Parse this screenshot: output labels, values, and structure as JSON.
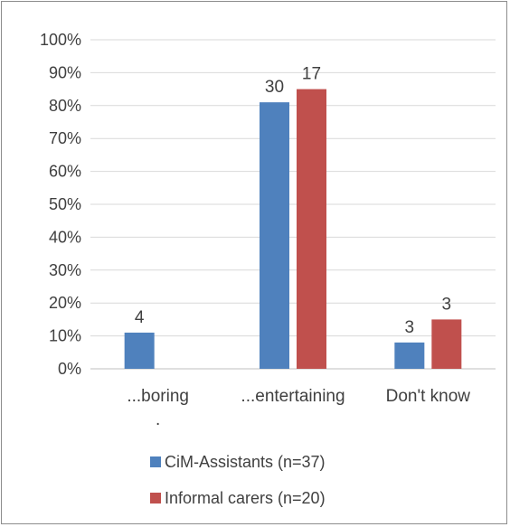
{
  "chart_data": {
    "type": "bar",
    "categories": [
      "...boring\n.",
      "...entertaining",
      "Don't know"
    ],
    "series": [
      {
        "name": "CiM-Assistants (n=37)",
        "values": [
          11,
          81,
          8
        ],
        "labels": [
          "4",
          "30",
          "3"
        ],
        "color": "#4f81bd"
      },
      {
        "name": "Informal carers (n=20)",
        "values": [
          0,
          85,
          15
        ],
        "labels": [
          "",
          "17",
          "3"
        ],
        "color": "#c0504d"
      }
    ],
    "ylim": [
      0,
      100
    ],
    "yticks": [
      "0%",
      "10%",
      "20%",
      "30%",
      "40%",
      "50%",
      "60%",
      "70%",
      "80%",
      "90%",
      "100%"
    ],
    "grid": true,
    "legend": "bottom"
  }
}
